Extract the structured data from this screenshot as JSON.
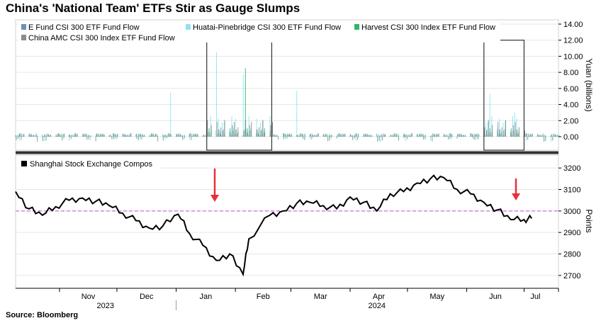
{
  "title": "China's 'National Team' ETFs Stir as Gauge Slumps",
  "source": "Source: Bloomberg",
  "colors": {
    "e_fund": "#6f8fb5",
    "huatai": "#8fe3f0",
    "harvest": "#2db86a",
    "china_amc": "#8c8c8c",
    "index_line": "#000000",
    "reference_line": "#d98ee6",
    "arrow": "#e8303a",
    "separator": "#333333"
  },
  "x_axis": {
    "months": [
      "Nov",
      "Dec",
      "Jan",
      "Feb",
      "Mar",
      "Apr",
      "May",
      "Jun",
      "Jul"
    ],
    "years": [
      "2023",
      "2024"
    ]
  },
  "chart_data": [
    {
      "type": "bar",
      "ylabel": "Yuan (billions)",
      "ylim": [
        -1.5,
        14.0
      ],
      "yticks": [
        "14.00",
        "12.00",
        "10.00",
        "8.00",
        "6.00",
        "4.00",
        "2.00",
        "0.00"
      ],
      "legend": "top-left",
      "x_start": "2023-10-09",
      "x_end": "2024-07-19",
      "series": [
        {
          "name": "E Fund CSI 300 ETF  Fund Flow",
          "color_key": "e_fund"
        },
        {
          "name": "Huatai-Pinebridge CSI 300 ETF Fund Flow",
          "color_key": "huatai"
        },
        {
          "name": "Harvest CSI 300 Index ETF Fund Flow",
          "color_key": "harvest"
        },
        {
          "name": "China AMC CSI 300 Index ETF Fund Flow",
          "color_key": "china_amc"
        }
      ],
      "highlight_boxes": [
        {
          "from": "2024-01-17",
          "to": "2024-02-20",
          "ymax": 12.0
        },
        {
          "from": "2024-06-10",
          "to": "2024-07-01",
          "ymax": 12.0
        }
      ],
      "notable_values": [
        {
          "date": "2024-01-22",
          "series": "Huatai-Pinebridge CSI 300 ETF Fund Flow",
          "value": 10.5
        },
        {
          "date": "2024-02-06",
          "series": "Harvest CSI 300 Index ETF Fund Flow",
          "value": 8.5
        },
        {
          "date": "2024-02-05",
          "series": "Huatai-Pinebridge CSI 300 ETF Fund Flow",
          "value": 7.7
        },
        {
          "date": "2023-12-29",
          "series": "Huatai-Pinebridge CSI 300 ETF Fund Flow",
          "value": 5.5
        },
        {
          "date": "2024-03-04",
          "series": "Huatai-Pinebridge CSI 300 ETF Fund Flow",
          "value": 5.7
        },
        {
          "date": "2024-06-13",
          "series": "Huatai-Pinebridge CSI 300 ETF Fund Flow",
          "value": 5.3
        },
        {
          "date": "2024-06-26",
          "series": "Huatai-Pinebridge CSI 300 ETF Fund Flow",
          "value": 3.0
        }
      ]
    },
    {
      "type": "line",
      "ylabel": "Points",
      "ylim": [
        2650,
        3250
      ],
      "yticks": [
        "3200",
        "3100",
        "3000",
        "2900",
        "2800",
        "2700"
      ],
      "legend": "top-left",
      "reference_line": 3000,
      "series": [
        {
          "name": "Shanghai Stock Exchange Compos",
          "x": [
            "2023-10-09",
            "2023-10-16",
            "2023-10-23",
            "2023-10-30",
            "2023-11-06",
            "2023-11-13",
            "2023-11-20",
            "2023-11-27",
            "2023-12-04",
            "2023-12-11",
            "2023-12-18",
            "2023-12-25",
            "2024-01-02",
            "2024-01-08",
            "2024-01-15",
            "2024-01-22",
            "2024-01-29",
            "2024-02-05",
            "2024-02-08",
            "2024-02-19",
            "2024-02-26",
            "2024-03-04",
            "2024-03-11",
            "2024-03-18",
            "2024-03-25",
            "2024-04-01",
            "2024-04-08",
            "2024-04-15",
            "2024-04-22",
            "2024-04-29",
            "2024-05-06",
            "2024-05-13",
            "2024-05-20",
            "2024-05-27",
            "2024-06-03",
            "2024-06-10",
            "2024-06-17",
            "2024-06-24",
            "2024-07-01",
            "2024-07-05"
          ],
          "y": [
            3090,
            3010,
            2980,
            3020,
            3050,
            3060,
            3045,
            3025,
            2990,
            2955,
            2920,
            2930,
            2985,
            2895,
            2840,
            2770,
            2800,
            2705,
            2870,
            2980,
            3000,
            3035,
            3040,
            3025,
            3010,
            3065,
            3040,
            3000,
            3080,
            3090,
            3130,
            3150,
            3155,
            3100,
            3080,
            3040,
            3005,
            2960,
            2960,
            2965
          ]
        }
      ]
    }
  ],
  "bar_fills": [
    {
      "e_fund": 0.25,
      "huatai": 0.2,
      "harvest": 0.3,
      "china_amc": 0.45
    },
    {
      "e_fund": 0.1,
      "huatai": 0.55,
      "harvest": 0.15,
      "china_amc": 0.3
    },
    {
      "e_fund": 0.7,
      "huatai": 0.6,
      "harvest": 0.25,
      "china_amc": 0.8
    },
    {
      "e_fund": 0.4,
      "huatai": 0.25,
      "harvest": 0.65,
      "china_amc": 0.2
    },
    {
      "e_fund": 0.15,
      "huatai": 0.8,
      "harvest": 0.45,
      "china_amc": 0.55
    },
    {
      "e_fund": 0.55,
      "huatai": 0.35,
      "harvest": 0.1,
      "china_amc": 0.7
    },
    {
      "e_fund": 0.3,
      "huatai": 0.7,
      "harvest": 0.55,
      "china_amc": 0.35
    }
  ]
}
